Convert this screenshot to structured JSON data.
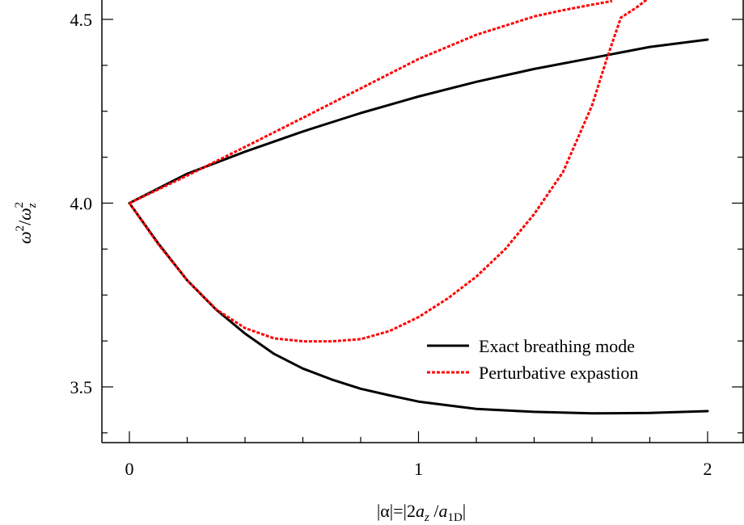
{
  "chart_data": {
    "type": "line",
    "xlim": [
      -0.1,
      2.15
    ],
    "ylim": [
      3.35,
      4.55
    ],
    "x_ticks": [
      {
        "value": 0,
        "label": "0"
      },
      {
        "value": 1,
        "label": "1"
      },
      {
        "value": 2,
        "label": "2"
      }
    ],
    "y_ticks": [
      {
        "value": 3.5,
        "label": "3.5"
      },
      {
        "value": 4.0,
        "label": "4.0"
      },
      {
        "value": 4.5,
        "label": "4.5"
      }
    ],
    "x_minor_step": 0.2,
    "y_minor_step": 0.125,
    "xlabel": {
      "prefix": "|α|=|2",
      "var_a": "a",
      "sub_z": "z",
      "mid": " /",
      "var_a2": "a",
      "sub_1d": "1D",
      "suffix": "|"
    },
    "ylabel": {
      "omega": "ω",
      "sup": "2",
      "slash": "/",
      "omega_z": "ω",
      "sub": "z",
      "sup2": "2"
    },
    "grid": false,
    "legend": {
      "placement": "bottom-right",
      "entries": [
        {
          "series": 0,
          "label": "Exact breathing mode"
        },
        {
          "series": 1,
          "label": "Perturbative expastion"
        }
      ]
    },
    "series": [
      {
        "name": "Exact breathing mode",
        "color": "#000000",
        "style": "solid",
        "segments": [
          {
            "x": [
              0,
              0.2,
              0.4,
              0.6,
              0.8,
              1.0,
              1.2,
              1.4,
              1.6,
              1.8,
              2.0
            ],
            "y": [
              4.0,
              4.08,
              4.14,
              4.195,
              4.245,
              4.29,
              4.33,
              4.365,
              4.395,
              4.425,
              4.445
            ]
          },
          {
            "x": [
              0,
              0.1,
              0.2,
              0.3,
              0.4,
              0.5,
              0.6,
              0.7,
              0.8,
              0.9,
              1.0,
              1.2,
              1.4,
              1.6,
              1.8,
              2.0
            ],
            "y": [
              4.0,
              3.89,
              3.79,
              3.71,
              3.645,
              3.59,
              3.55,
              3.52,
              3.495,
              3.477,
              3.46,
              3.44,
              3.432,
              3.428,
              3.429,
              3.434
            ]
          }
        ]
      },
      {
        "name": "Perturbative expastion",
        "color": "#ff0000",
        "style": "dashed",
        "segments": [
          {
            "x": [
              0,
              0.2,
              0.4,
              0.6,
              0.8,
              1.0,
              1.2,
              1.4,
              1.5,
              1.6,
              1.67
            ],
            "y": [
              4.0,
              4.075,
              4.153,
              4.232,
              4.312,
              4.392,
              4.458,
              4.508,
              4.525,
              4.54,
              4.55
            ]
          },
          {
            "x": [
              0,
              0.1,
              0.2,
              0.3,
              0.4,
              0.5,
              0.6,
              0.7,
              0.8,
              0.9,
              1.0,
              1.1,
              1.2,
              1.3,
              1.4,
              1.5,
              1.6,
              1.65,
              1.7,
              1.75,
              1.8
            ],
            "y": [
              4.0,
              3.888,
              3.79,
              3.711,
              3.66,
              3.632,
              3.624,
              3.624,
              3.63,
              3.652,
              3.69,
              3.74,
              3.8,
              3.875,
              3.97,
              4.085,
              4.265,
              4.39,
              4.505,
              4.53,
              4.56
            ]
          }
        ]
      }
    ]
  }
}
